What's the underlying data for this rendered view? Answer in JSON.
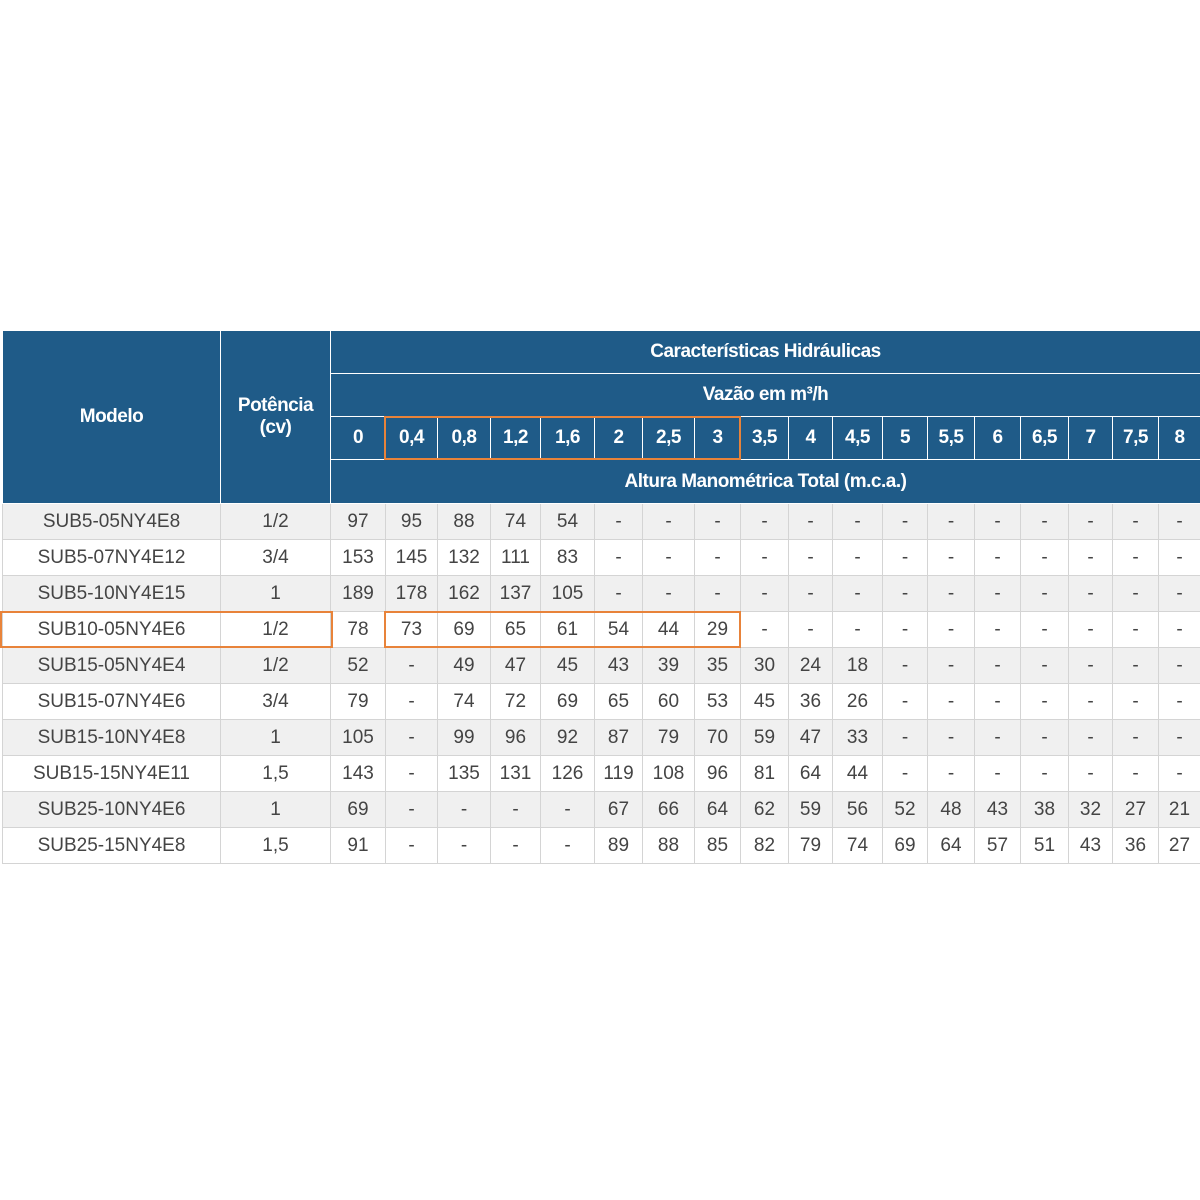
{
  "table": {
    "header": {
      "model": "Modelo",
      "power": "Potência (cv)",
      "group": "Características Hidráulicas",
      "flow_label": "Vazão em m³/h",
      "flows": [
        "0",
        "0,4",
        "0,8",
        "1,2",
        "1,6",
        "2",
        "2,5",
        "3",
        "3,5",
        "4",
        "4,5",
        "5",
        "5,5",
        "6",
        "6,5",
        "7",
        "7,5",
        "8"
      ],
      "head_label": "Altura Manométrica Total (m.c.a.)"
    },
    "rows": [
      [
        "SUB5-05NY4E8",
        "1/2",
        "97",
        "95",
        "88",
        "74",
        "54",
        "-",
        "-",
        "-",
        "-",
        "-",
        "-",
        "-",
        "-",
        "-",
        "-",
        "-",
        "-",
        "-"
      ],
      [
        "SUB5-07NY4E12",
        "3/4",
        "153",
        "145",
        "132",
        "111",
        "83",
        "-",
        "-",
        "-",
        "-",
        "-",
        "-",
        "-",
        "-",
        "-",
        "-",
        "-",
        "-",
        "-"
      ],
      [
        "SUB5-10NY4E15",
        "1",
        "189",
        "178",
        "162",
        "137",
        "105",
        "-",
        "-",
        "-",
        "-",
        "-",
        "-",
        "-",
        "-",
        "-",
        "-",
        "-",
        "-",
        "-"
      ],
      [
        "SUB10-05NY4E6",
        "1/2",
        "78",
        "73",
        "69",
        "65",
        "61",
        "54",
        "44",
        "29",
        "-",
        "-",
        "-",
        "-",
        "-",
        "-",
        "-",
        "-",
        "-",
        "-"
      ],
      [
        "SUB15-05NY4E4",
        "1/2",
        "52",
        "-",
        "49",
        "47",
        "45",
        "43",
        "39",
        "35",
        "30",
        "24",
        "18",
        "-",
        "-",
        "-",
        "-",
        "-",
        "-",
        "-"
      ],
      [
        "SUB15-07NY4E6",
        "3/4",
        "79",
        "-",
        "74",
        "72",
        "69",
        "65",
        "60",
        "53",
        "45",
        "36",
        "26",
        "-",
        "-",
        "-",
        "-",
        "-",
        "-",
        "-"
      ],
      [
        "SUB15-10NY4E8",
        "1",
        "105",
        "-",
        "99",
        "96",
        "92",
        "87",
        "79",
        "70",
        "59",
        "47",
        "33",
        "-",
        "-",
        "-",
        "-",
        "-",
        "-",
        "-"
      ],
      [
        "SUB15-15NY4E11",
        "1,5",
        "143",
        "-",
        "135",
        "131",
        "126",
        "119",
        "108",
        "96",
        "81",
        "64",
        "44",
        "-",
        "-",
        "-",
        "-",
        "-",
        "-",
        "-"
      ],
      [
        "SUB25-10NY4E6",
        "1",
        "69",
        "-",
        "-",
        "-",
        "-",
        "67",
        "66",
        "64",
        "62",
        "59",
        "56",
        "52",
        "48",
        "43",
        "38",
        "32",
        "27",
        "21"
      ],
      [
        "SUB25-15NY4E8",
        "1,5",
        "91",
        "-",
        "-",
        "-",
        "-",
        "89",
        "88",
        "85",
        "82",
        "79",
        "74",
        "69",
        "64",
        "57",
        "51",
        "43",
        "36",
        "27"
      ]
    ]
  }
}
